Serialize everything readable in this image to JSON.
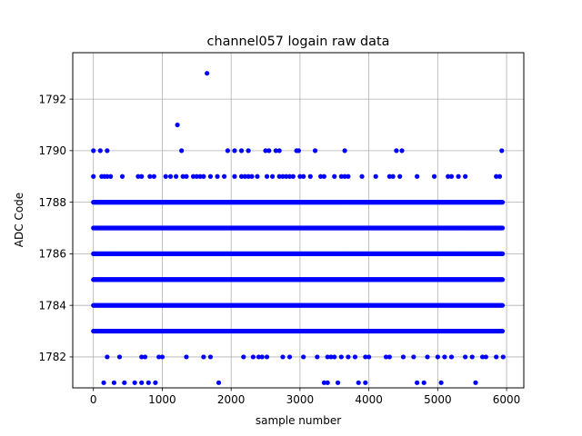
{
  "chart_data": {
    "type": "scatter",
    "title": "channel057 logain raw data",
    "xlabel": "sample number",
    "ylabel": "ADC Code",
    "xlim": [
      -300,
      6250
    ],
    "ylim": [
      1780.8,
      1793.8
    ],
    "xticks": [
      0,
      1000,
      2000,
      3000,
      4000,
      5000,
      6000
    ],
    "yticks": [
      1782,
      1784,
      1786,
      1788,
      1790,
      1792
    ],
    "grid": true,
    "marker_color": "#0000ff",
    "series": [
      {
        "x_range": [
          0,
          5950
        ],
        "dense_levels": [
          1783,
          1784,
          1785,
          1786,
          1787,
          1788
        ],
        "sparse_points": {
          "1790": [
            0,
            100,
            200,
            1280,
            1950,
            2050,
            2150,
            2250,
            2500,
            2550,
            2650,
            2700,
            2950,
            2980,
            3220,
            3650,
            4400,
            4480,
            5930
          ],
          "1789": [
            0,
            120,
            160,
            200,
            250,
            420,
            650,
            700,
            820,
            880,
            1050,
            1120,
            1200,
            1300,
            1350,
            1450,
            1500,
            1550,
            1600,
            1700,
            1800,
            1900,
            2050,
            2150,
            2200,
            2250,
            2300,
            2380,
            2520,
            2600,
            2700,
            2750,
            2800,
            2850,
            2900,
            3000,
            3050,
            3150,
            3300,
            3350,
            3500,
            3600,
            3650,
            3700,
            3900,
            4100,
            4300,
            4350,
            4450,
            4700,
            4950,
            5150,
            5200,
            5300,
            5400,
            5850,
            5900
          ],
          "1791": [
            1220
          ],
          "1793": [
            1650
          ],
          "1782": [
            200,
            380,
            700,
            750,
            950,
            1000,
            1350,
            1600,
            1700,
            2180,
            2320,
            2400,
            2450,
            2520,
            2750,
            2850,
            3050,
            3250,
            3400,
            3450,
            3500,
            3600,
            3700,
            3800,
            3950,
            4000,
            4250,
            4300,
            4500,
            4650,
            4850,
            5000,
            5100,
            5200,
            5400,
            5500,
            5650,
            5700,
            5850,
            5950
          ],
          "1781": [
            150,
            300,
            450,
            600,
            700,
            800,
            900,
            1820,
            3350,
            3400,
            3550,
            3850,
            3950,
            4700,
            4800,
            5050,
            5550
          ]
        }
      }
    ]
  }
}
